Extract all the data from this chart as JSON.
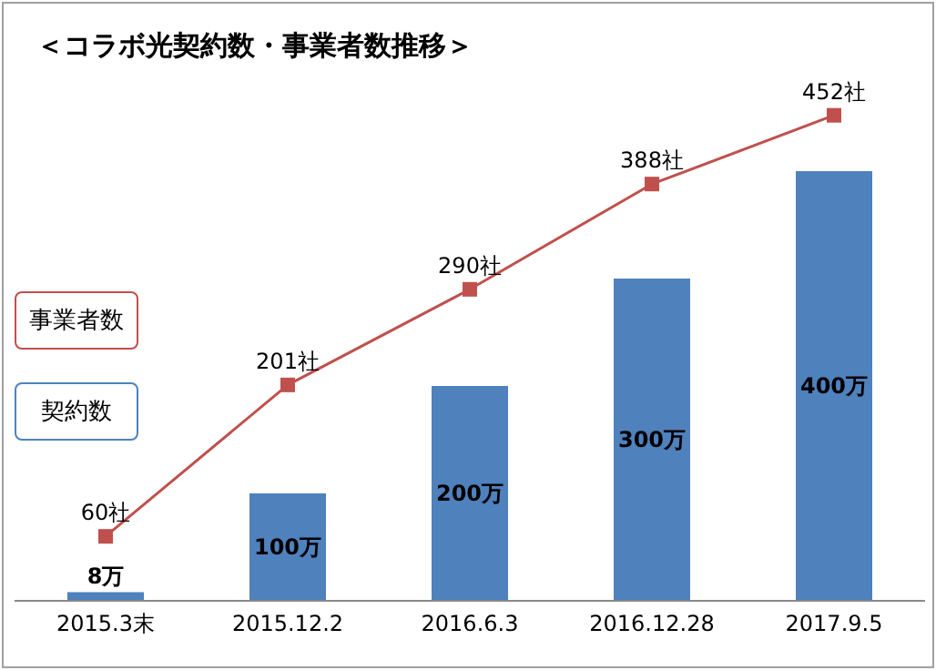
{
  "chart_data": {
    "type": "bar",
    "title": "＜コラボ光契約数・事業者数推移＞",
    "categories": [
      "2015.3末",
      "2015.12.2",
      "2016.6.3",
      "2016.12.28",
      "2017.9.5"
    ],
    "legend": "left",
    "series": [
      {
        "name": "契約数",
        "color": "#4f81bd",
        "values": [
          8,
          100,
          200,
          300,
          400
        ],
        "value_labels": [
          "8万",
          "100万",
          "200万",
          "300万",
          "400万"
        ]
      },
      {
        "name": "事業者数",
        "type": "line",
        "color": "#c0504d",
        "marker": "square",
        "values": [
          60,
          201,
          290,
          388,
          452
        ],
        "value_labels": [
          "60社",
          "201社",
          "290社",
          "388社",
          "452社"
        ]
      }
    ]
  }
}
